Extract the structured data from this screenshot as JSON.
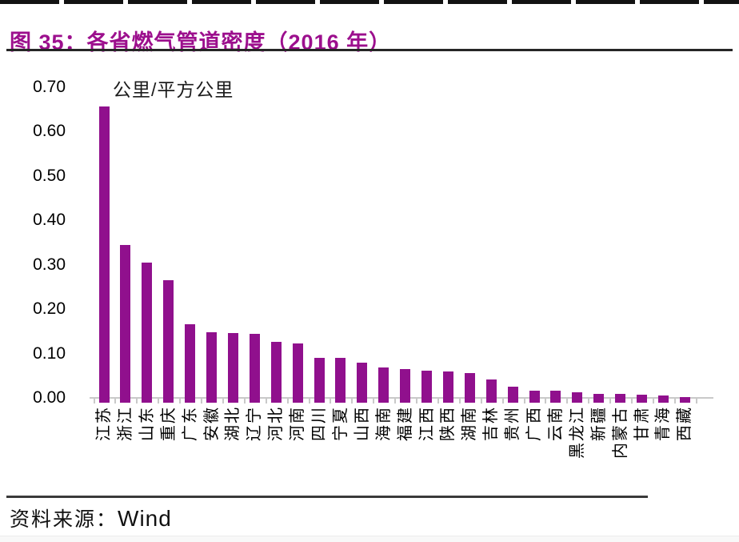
{
  "figure": {
    "title": "图 35：各省燃气管道密度（2016 年）",
    "source_label": "资料来源：",
    "source_name": "Wind"
  },
  "colors": {
    "title": "#9C0F8D",
    "bar": "#90108D",
    "axis": "#C9C9C9"
  },
  "chart_data": {
    "type": "bar",
    "title": "各省燃气管道密度（2016 年）",
    "unit_label": "公里/平方公里",
    "categories": [
      "江苏",
      "浙江",
      "山东",
      "重庆",
      "广东",
      "安徽",
      "湖北",
      "辽宁",
      "河北",
      "河南",
      "四川",
      "宁夏",
      "山西",
      "海南",
      "福建",
      "江西",
      "陕西",
      "湖南",
      "吉林",
      "贵州",
      "广西",
      "云南",
      "黑龙江",
      "新疆",
      "内蒙古",
      "甘肃",
      "青海",
      "西藏"
    ],
    "values": [
      0.655,
      0.345,
      0.305,
      0.265,
      0.165,
      0.148,
      0.146,
      0.145,
      0.126,
      0.122,
      0.09,
      0.09,
      0.08,
      0.068,
      0.065,
      0.062,
      0.06,
      0.055,
      0.042,
      0.026,
      0.017,
      0.017,
      0.013,
      0.009,
      0.009,
      0.008,
      0.006,
      0.002
    ],
    "xlabel": "",
    "ylabel": "公里/平方公里",
    "ylim": [
      0,
      0.7
    ],
    "ytick_labels": [
      "0.70",
      "0.60",
      "0.50",
      "0.40",
      "0.30",
      "0.20",
      "0.10",
      "0.00"
    ],
    "grid": false,
    "legend": "none"
  }
}
